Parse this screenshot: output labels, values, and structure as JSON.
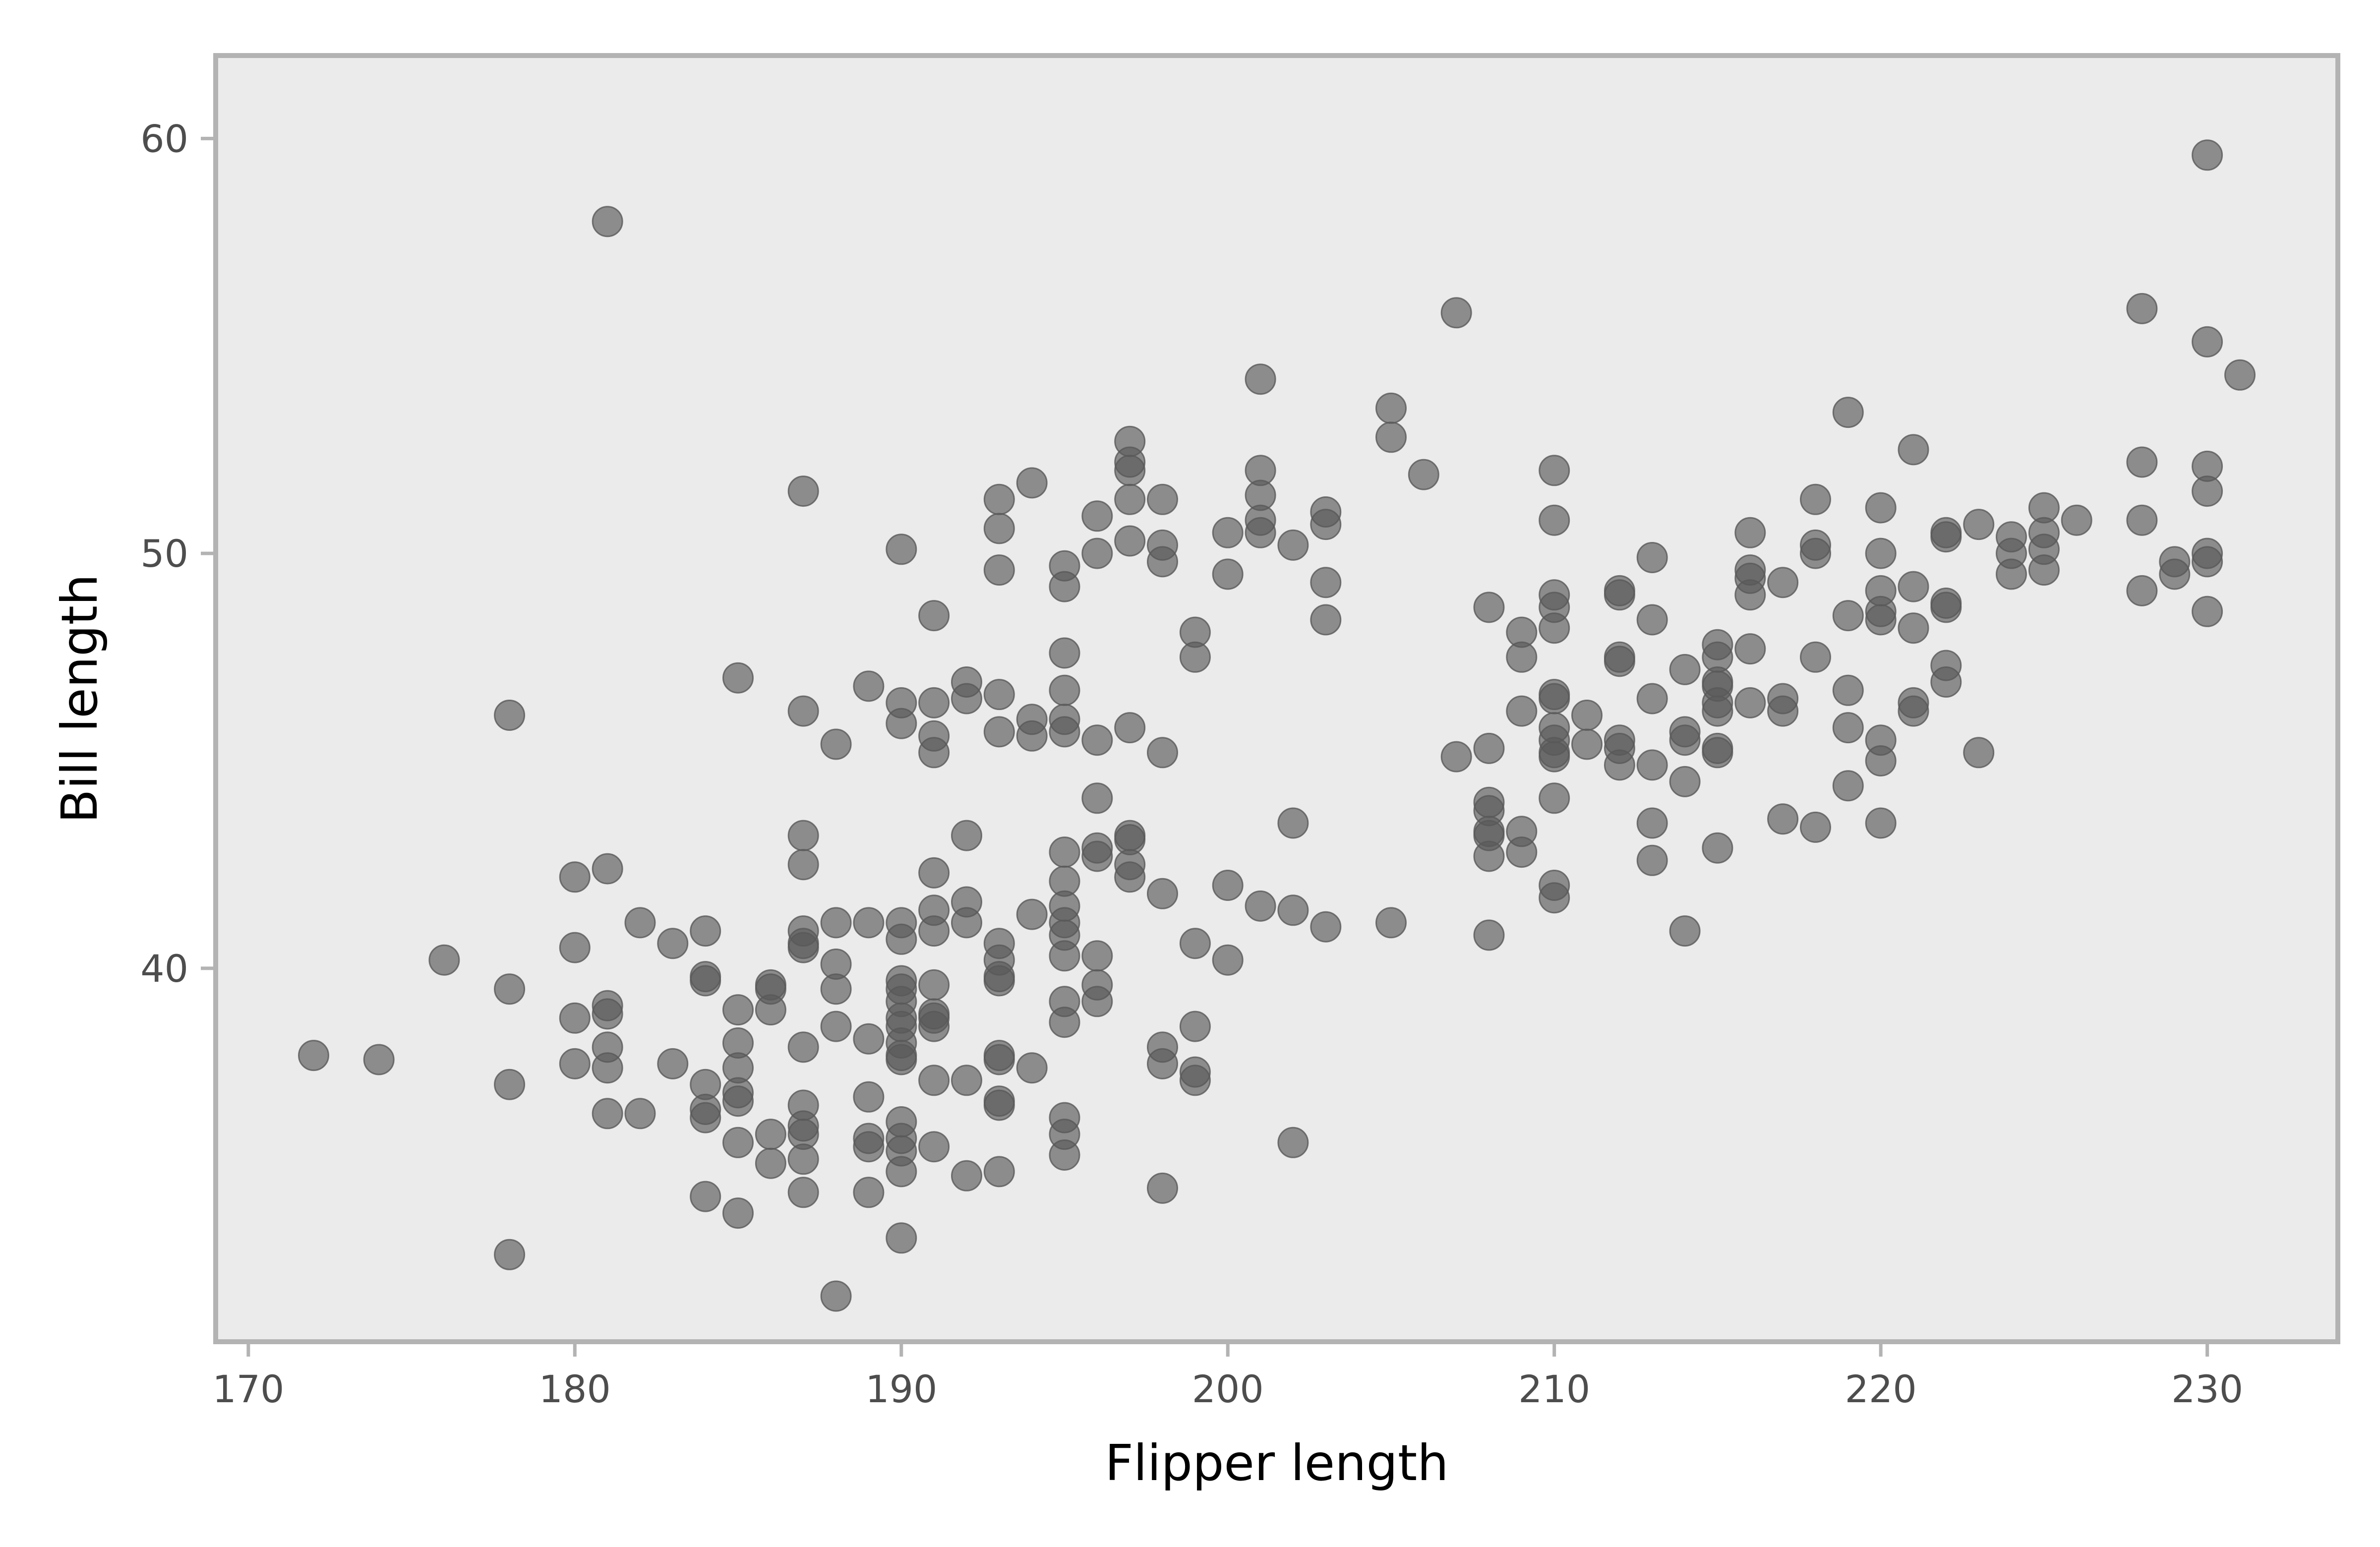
{
  "colors": {
    "panel_background": "#ebebeb",
    "panel_border": "#b3b3b3",
    "point_fill": "#595959",
    "tick_label": "#4d4d4d",
    "axis_title": "#000000"
  },
  "chart_data": {
    "type": "scatter",
    "title": "",
    "xlabel": "Flipper length",
    "ylabel": "Bill length",
    "xlim": [
      169,
      234
    ],
    "ylim": [
      31,
      62
    ],
    "x_ticks": [
      170,
      180,
      190,
      200,
      210,
      220,
      230
    ],
    "y_ticks": [
      40,
      50,
      60
    ],
    "x_tick_labels": [
      "170",
      "180",
      "190",
      "200",
      "210",
      "220",
      "230"
    ],
    "y_tick_labels": [
      "40",
      "50",
      "60"
    ],
    "grid": false,
    "legend": "none",
    "point_opacity": 0.65,
    "points": [
      [
        172,
        37.9
      ],
      [
        174,
        37.8
      ],
      [
        176,
        40.2
      ],
      [
        178,
        46.1
      ],
      [
        178,
        39.5
      ],
      [
        178,
        37.2
      ],
      [
        178,
        33.1
      ],
      [
        180,
        42.2
      ],
      [
        180,
        40.5
      ],
      [
        180,
        38.8
      ],
      [
        180,
        37.7
      ],
      [
        181,
        58.0
      ],
      [
        181,
        42.4
      ],
      [
        181,
        39.1
      ],
      [
        181,
        38.9
      ],
      [
        181,
        38.1
      ],
      [
        181,
        37.6
      ],
      [
        181,
        36.5
      ],
      [
        182,
        41.1
      ],
      [
        182,
        36.5
      ],
      [
        183,
        40.6
      ],
      [
        183,
        37.7
      ],
      [
        184,
        40.9
      ],
      [
        184,
        39.8
      ],
      [
        184,
        39.7
      ],
      [
        184,
        37.2
      ],
      [
        184,
        36.6
      ],
      [
        184,
        36.4
      ],
      [
        184,
        34.5
      ],
      [
        185,
        47.0
      ],
      [
        185,
        39.0
      ],
      [
        185,
        38.2
      ],
      [
        185,
        37.6
      ],
      [
        185,
        37.0
      ],
      [
        185,
        36.8
      ],
      [
        185,
        35.8
      ],
      [
        185,
        34.1
      ],
      [
        186,
        39.6
      ],
      [
        186,
        39.5
      ],
      [
        186,
        39.0
      ],
      [
        186,
        36.0
      ],
      [
        186,
        35.3
      ],
      [
        187,
        51.5
      ],
      [
        187,
        46.2
      ],
      [
        187,
        43.2
      ],
      [
        187,
        42.5
      ],
      [
        187,
        40.9
      ],
      [
        187,
        40.6
      ],
      [
        187,
        40.5
      ],
      [
        187,
        38.1
      ],
      [
        187,
        36.7
      ],
      [
        187,
        36.2
      ],
      [
        187,
        36.0
      ],
      [
        187,
        35.4
      ],
      [
        187,
        34.6
      ],
      [
        188,
        45.4
      ],
      [
        188,
        41.1
      ],
      [
        188,
        40.1
      ],
      [
        188,
        39.5
      ],
      [
        188,
        38.6
      ],
      [
        188,
        32.1
      ],
      [
        189,
        46.8
      ],
      [
        189,
        41.1
      ],
      [
        189,
        38.3
      ],
      [
        189,
        36.9
      ],
      [
        189,
        35.9
      ],
      [
        189,
        35.7
      ],
      [
        189,
        34.6
      ],
      [
        190,
        50.1
      ],
      [
        190,
        46.4
      ],
      [
        190,
        45.9
      ],
      [
        190,
        41.1
      ],
      [
        190,
        40.7
      ],
      [
        190,
        39.7
      ],
      [
        190,
        39.5
      ],
      [
        190,
        39.2
      ],
      [
        190,
        38.8
      ],
      [
        190,
        38.6
      ],
      [
        190,
        38.2
      ],
      [
        190,
        37.9
      ],
      [
        190,
        37.8
      ],
      [
        190,
        36.3
      ],
      [
        190,
        35.9
      ],
      [
        190,
        35.6
      ],
      [
        190,
        35.1
      ],
      [
        190,
        33.5
      ],
      [
        191,
        48.5
      ],
      [
        191,
        46.4
      ],
      [
        191,
        45.6
      ],
      [
        191,
        45.2
      ],
      [
        191,
        42.3
      ],
      [
        191,
        41.4
      ],
      [
        191,
        40.9
      ],
      [
        191,
        39.6
      ],
      [
        191,
        38.9
      ],
      [
        191,
        38.8
      ],
      [
        191,
        38.6
      ],
      [
        191,
        37.3
      ],
      [
        191,
        35.7
      ],
      [
        192,
        46.9
      ],
      [
        192,
        46.5
      ],
      [
        192,
        43.2
      ],
      [
        192,
        41.6
      ],
      [
        192,
        41.1
      ],
      [
        192,
        37.3
      ],
      [
        192,
        35.0
      ],
      [
        193,
        51.3
      ],
      [
        193,
        50.6
      ],
      [
        193,
        49.6
      ],
      [
        193,
        46.6
      ],
      [
        193,
        45.7
      ],
      [
        193,
        40.6
      ],
      [
        193,
        40.2
      ],
      [
        193,
        39.8
      ],
      [
        193,
        39.7
      ],
      [
        193,
        37.9
      ],
      [
        193,
        37.8
      ],
      [
        193,
        36.8
      ],
      [
        193,
        36.7
      ],
      [
        193,
        35.1
      ],
      [
        194,
        51.7
      ],
      [
        194,
        46.0
      ],
      [
        194,
        45.6
      ],
      [
        194,
        41.3
      ],
      [
        194,
        37.6
      ],
      [
        195,
        49.7
      ],
      [
        195,
        49.2
      ],
      [
        195,
        47.6
      ],
      [
        195,
        46.7
      ],
      [
        195,
        46.0
      ],
      [
        195,
        45.7
      ],
      [
        195,
        42.8
      ],
      [
        195,
        42.1
      ],
      [
        195,
        41.5
      ],
      [
        195,
        41.1
      ],
      [
        195,
        40.8
      ],
      [
        195,
        40.3
      ],
      [
        195,
        39.2
      ],
      [
        195,
        38.7
      ],
      [
        195,
        36.4
      ],
      [
        195,
        36.0
      ],
      [
        195,
        35.5
      ],
      [
        196,
        50.9
      ],
      [
        196,
        50.0
      ],
      [
        196,
        45.5
      ],
      [
        196,
        44.1
      ],
      [
        196,
        42.9
      ],
      [
        196,
        42.7
      ],
      [
        196,
        40.3
      ],
      [
        196,
        39.6
      ],
      [
        196,
        39.2
      ],
      [
        197,
        52.7
      ],
      [
        197,
        52.2
      ],
      [
        197,
        52.0
      ],
      [
        197,
        51.3
      ],
      [
        197,
        50.3
      ],
      [
        197,
        45.8
      ],
      [
        197,
        43.2
      ],
      [
        197,
        43.1
      ],
      [
        197,
        42.5
      ],
      [
        197,
        42.2
      ],
      [
        198,
        51.3
      ],
      [
        198,
        50.2
      ],
      [
        198,
        49.8
      ],
      [
        198,
        45.2
      ],
      [
        198,
        41.8
      ],
      [
        198,
        38.1
      ],
      [
        198,
        37.7
      ],
      [
        198,
        34.7
      ],
      [
        199,
        48.1
      ],
      [
        199,
        47.5
      ],
      [
        199,
        40.6
      ],
      [
        199,
        38.6
      ],
      [
        199,
        37.5
      ],
      [
        199,
        37.3
      ],
      [
        200,
        50.5
      ],
      [
        200,
        49.5
      ],
      [
        200,
        42.0
      ],
      [
        200,
        40.2
      ],
      [
        201,
        54.2
      ],
      [
        201,
        52.0
      ],
      [
        201,
        51.4
      ],
      [
        201,
        50.8
      ],
      [
        201,
        50.5
      ],
      [
        201,
        41.5
      ],
      [
        202,
        50.2
      ],
      [
        202,
        43.5
      ],
      [
        202,
        41.4
      ],
      [
        202,
        35.8
      ],
      [
        203,
        51.0
      ],
      [
        203,
        50.7
      ],
      [
        203,
        49.3
      ],
      [
        203,
        48.4
      ],
      [
        203,
        41.0
      ],
      [
        205,
        53.5
      ],
      [
        205,
        52.8
      ],
      [
        205,
        41.1
      ],
      [
        206,
        51.9
      ],
      [
        207,
        55.8
      ],
      [
        207,
        45.1
      ],
      [
        208,
        48.7
      ],
      [
        208,
        45.3
      ],
      [
        208,
        44.0
      ],
      [
        208,
        43.8
      ],
      [
        208,
        43.3
      ],
      [
        208,
        43.2
      ],
      [
        208,
        42.7
      ],
      [
        208,
        40.8
      ],
      [
        209,
        48.1
      ],
      [
        209,
        47.5
      ],
      [
        209,
        46.2
      ],
      [
        209,
        43.3
      ],
      [
        209,
        42.8
      ],
      [
        210,
        52.0
      ],
      [
        210,
        50.8
      ],
      [
        210,
        49.0
      ],
      [
        210,
        48.7
      ],
      [
        210,
        48.2
      ],
      [
        210,
        46.6
      ],
      [
        210,
        46.5
      ],
      [
        210,
        45.8
      ],
      [
        210,
        45.5
      ],
      [
        210,
        45.2
      ],
      [
        210,
        45.1
      ],
      [
        210,
        44.1
      ],
      [
        210,
        42.0
      ],
      [
        210,
        41.7
      ],
      [
        211,
        46.1
      ],
      [
        211,
        45.4
      ],
      [
        212,
        49.1
      ],
      [
        212,
        49.0
      ],
      [
        212,
        47.5
      ],
      [
        212,
        47.4
      ],
      [
        212,
        45.5
      ],
      [
        212,
        45.3
      ],
      [
        212,
        44.9
      ],
      [
        213,
        49.9
      ],
      [
        213,
        48.4
      ],
      [
        213,
        46.5
      ],
      [
        213,
        44.9
      ],
      [
        213,
        43.5
      ],
      [
        213,
        42.6
      ],
      [
        214,
        47.2
      ],
      [
        214,
        45.7
      ],
      [
        214,
        45.5
      ],
      [
        214,
        44.5
      ],
      [
        214,
        40.9
      ],
      [
        215,
        47.8
      ],
      [
        215,
        47.5
      ],
      [
        215,
        46.9
      ],
      [
        215,
        46.8
      ],
      [
        215,
        46.4
      ],
      [
        215,
        46.2
      ],
      [
        215,
        45.3
      ],
      [
        215,
        45.2
      ],
      [
        215,
        42.9
      ],
      [
        216,
        50.5
      ],
      [
        216,
        49.6
      ],
      [
        216,
        49.4
      ],
      [
        216,
        49.0
      ],
      [
        216,
        47.7
      ],
      [
        216,
        46.4
      ],
      [
        217,
        49.3
      ],
      [
        217,
        46.5
      ],
      [
        217,
        46.2
      ],
      [
        217,
        43.6
      ],
      [
        218,
        51.3
      ],
      [
        218,
        50.2
      ],
      [
        218,
        50.0
      ],
      [
        218,
        47.5
      ],
      [
        218,
        43.4
      ],
      [
        219,
        53.4
      ],
      [
        219,
        48.5
      ],
      [
        219,
        46.7
      ],
      [
        219,
        45.8
      ],
      [
        219,
        44.4
      ],
      [
        220,
        51.1
      ],
      [
        220,
        50.0
      ],
      [
        220,
        49.1
      ],
      [
        220,
        48.6
      ],
      [
        220,
        48.4
      ],
      [
        220,
        45.5
      ],
      [
        220,
        45.0
      ],
      [
        220,
        43.5
      ],
      [
        221,
        52.5
      ],
      [
        221,
        49.2
      ],
      [
        221,
        48.2
      ],
      [
        221,
        46.4
      ],
      [
        221,
        46.2
      ],
      [
        222,
        50.5
      ],
      [
        222,
        50.4
      ],
      [
        222,
        48.8
      ],
      [
        222,
        48.7
      ],
      [
        222,
        47.3
      ],
      [
        222,
        46.9
      ],
      [
        223,
        50.7
      ],
      [
        223,
        45.2
      ],
      [
        224,
        50.4
      ],
      [
        224,
        50.0
      ],
      [
        224,
        49.5
      ],
      [
        225,
        51.1
      ],
      [
        225,
        50.5
      ],
      [
        225,
        50.1
      ],
      [
        225,
        49.6
      ],
      [
        226,
        50.8
      ],
      [
        228,
        55.9
      ],
      [
        228,
        52.2
      ],
      [
        228,
        50.8
      ],
      [
        228,
        49.1
      ],
      [
        229,
        49.8
      ],
      [
        229,
        49.5
      ],
      [
        230,
        59.6
      ],
      [
        230,
        55.1
      ],
      [
        230,
        52.1
      ],
      [
        230,
        51.5
      ],
      [
        230,
        50.0
      ],
      [
        230,
        49.8
      ],
      [
        230,
        48.6
      ],
      [
        231,
        54.3
      ]
    ]
  }
}
